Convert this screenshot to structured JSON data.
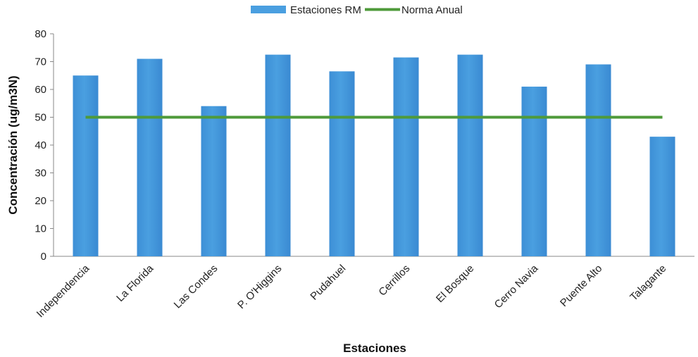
{
  "chart_data": {
    "type": "bar",
    "title": "",
    "xlabel": "Estaciones",
    "ylabel": "Concentración (ug/m3N)",
    "ylim": [
      0,
      80
    ],
    "yticks": [
      0,
      10,
      20,
      30,
      40,
      50,
      60,
      70,
      80
    ],
    "grid": false,
    "legend_position": "top-center",
    "categories": [
      "Independencia",
      "La Florida",
      "Las Condes",
      "P. O'Higgins",
      "Pudahuel",
      "Cerrillos",
      "El Bosque",
      "Cerro Navia",
      "Puente Alto",
      "Talagante"
    ],
    "series": [
      {
        "name": "Estaciones RM",
        "kind": "bar",
        "color": "#4a9fe0",
        "values": [
          65,
          71,
          54,
          72.5,
          66.5,
          71.5,
          72.5,
          61,
          69,
          43
        ]
      },
      {
        "name": "Norma Anual",
        "kind": "line",
        "color": "#4e9a3a",
        "values": [
          50,
          50,
          50,
          50,
          50,
          50,
          50,
          50,
          50,
          50
        ]
      }
    ]
  }
}
